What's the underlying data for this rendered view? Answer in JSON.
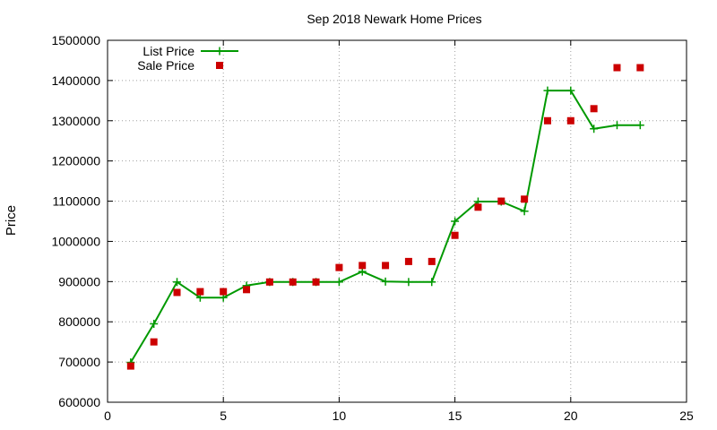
{
  "chart_data": {
    "type": "line",
    "title": "Sep 2018 Newark Home Prices",
    "xlabel": "",
    "ylabel": "Price",
    "xlim": [
      0,
      25
    ],
    "ylim": [
      600000,
      1500000
    ],
    "x_ticks": [
      0,
      5,
      10,
      15,
      20,
      25
    ],
    "y_ticks": [
      600000,
      700000,
      800000,
      900000,
      1000000,
      1100000,
      1200000,
      1300000,
      1400000,
      1500000
    ],
    "grid": true,
    "legend_position": "top-left",
    "series": [
      {
        "name": "List Price",
        "style": "line-plus",
        "color": "#009900",
        "x": [
          1,
          2,
          3,
          4,
          5,
          6,
          7,
          8,
          9,
          10,
          11,
          12,
          13,
          14,
          15,
          16,
          17,
          18,
          19,
          20,
          21,
          22,
          23
        ],
        "y": [
          699000,
          795000,
          899000,
          860000,
          860000,
          890000,
          899000,
          899000,
          899000,
          899000,
          925000,
          900000,
          899000,
          899000,
          1050000,
          1099000,
          1099000,
          1075000,
          1375000,
          1375000,
          1280000,
          1289000,
          1289000
        ]
      },
      {
        "name": "Sale Price",
        "style": "points-square",
        "color": "#cc0000",
        "x": [
          1,
          2,
          3,
          4,
          5,
          6,
          7,
          8,
          9,
          10,
          11,
          12,
          13,
          14,
          15,
          16,
          17,
          18,
          19,
          20,
          21,
          22,
          23
        ],
        "y": [
          690000,
          750000,
          873000,
          875000,
          875000,
          880000,
          899000,
          899000,
          899000,
          935000,
          940000,
          940000,
          950000,
          950000,
          1015000,
          1085000,
          1100000,
          1105000,
          1300000,
          1300000,
          1330000,
          1432000,
          1432000
        ]
      }
    ]
  }
}
